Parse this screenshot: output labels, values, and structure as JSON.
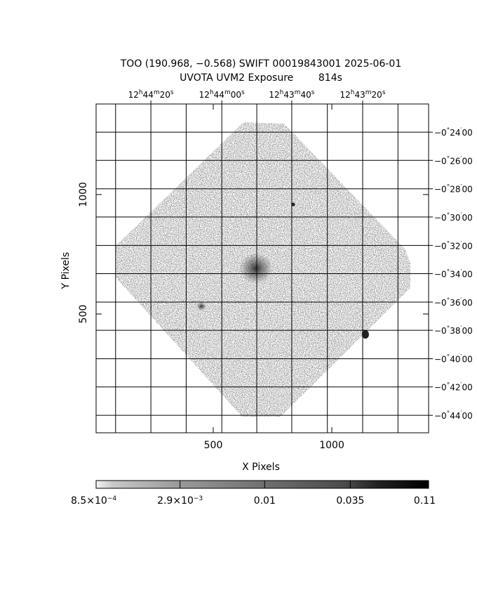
{
  "chart_data": {
    "type": "image",
    "title": "TOO (190.968, −0.568) SWIFT 00019843001 2025-06-01",
    "subtitle": "UVOTA UVM2 Exposure        814s",
    "xlabel": "X Pixels",
    "ylabel": "Y Pixels",
    "xlim": [
      6,
      1408
    ],
    "ylim": [
      3,
      1379
    ],
    "xticks": [
      500,
      1000
    ],
    "yticks": [
      500,
      1000
    ],
    "ra_ticks": [
      {
        "value": 237,
        "label": "12h44m20s"
      },
      {
        "value": 536,
        "label": "12h44m00s"
      },
      {
        "value": 831,
        "label": "12h43m40s"
      },
      {
        "value": 1130,
        "label": "12h43m20s"
      }
    ],
    "dec_ticks": [
      {
        "value": 1261,
        "label": "−0°24′00"
      },
      {
        "value": 1143,
        "label": "−0°26′00"
      },
      {
        "value": 1024,
        "label": "−0°28′00"
      },
      {
        "value": 906,
        "label": "−0°30′00"
      },
      {
        "value": 787,
        "label": "−0°32′00"
      },
      {
        "value": 669,
        "label": "−0°34′00"
      },
      {
        "value": 550,
        "label": "−0°36′00"
      },
      {
        "value": 432,
        "label": "−0°38′00"
      },
      {
        "value": 313,
        "label": "−0°40′00"
      },
      {
        "value": 195,
        "label": "−0°42′00"
      },
      {
        "value": 76,
        "label": "−0°44′00"
      }
    ],
    "colorbar": {
      "log": true,
      "lim": [
        0.00085,
        0.11
      ],
      "ticks": [
        {
          "value": 0.00085,
          "label": "8.5×10−4"
        },
        {
          "value": 0.0029,
          "label": "2.9×10−3"
        },
        0.01,
        0.035,
        0.11
      ]
    },
    "grid": true
  }
}
